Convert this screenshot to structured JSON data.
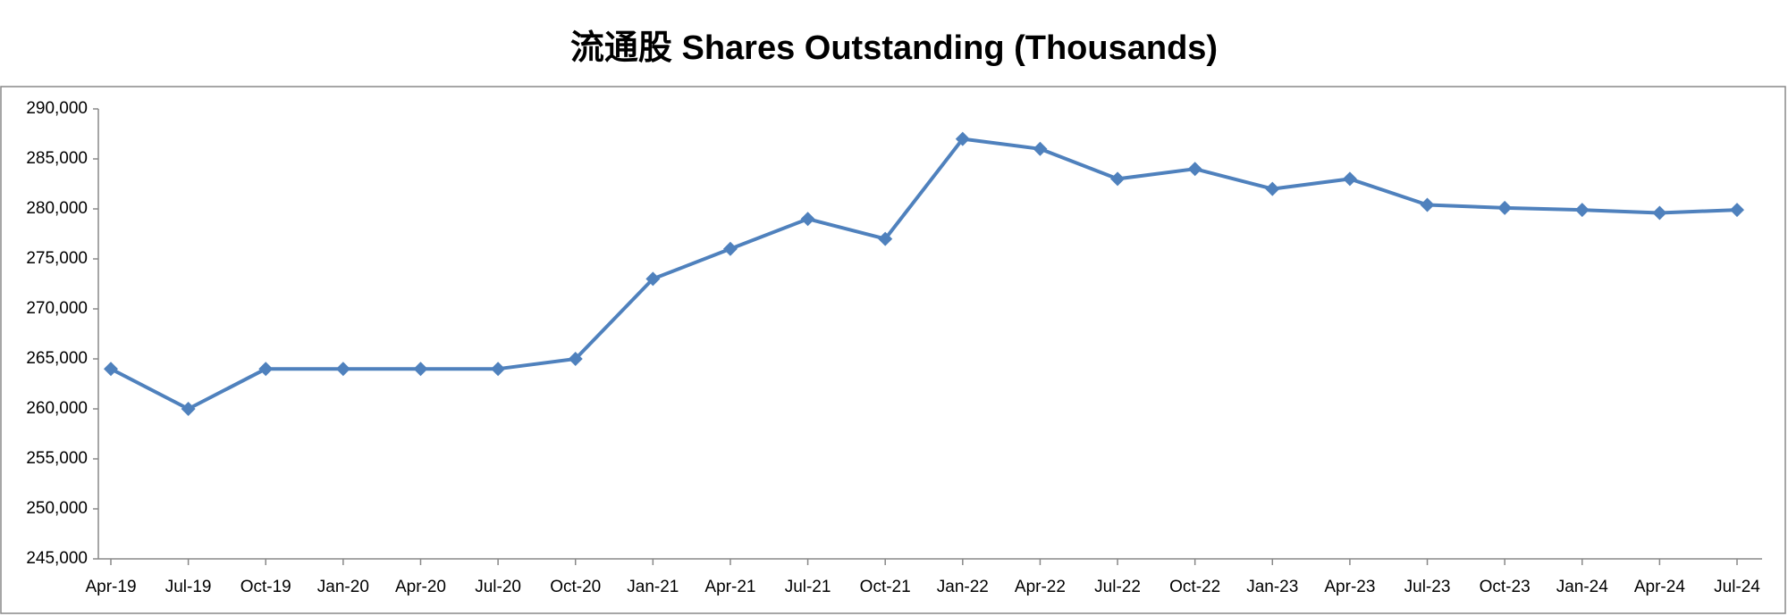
{
  "chart_data": {
    "type": "line",
    "title": "流通股 Shares Outstanding (Thousands)",
    "categories": [
      "Apr-19",
      "Jul-19",
      "Oct-19",
      "Jan-20",
      "Apr-20",
      "Jul-20",
      "Oct-20",
      "Jan-21",
      "Apr-21",
      "Jul-21",
      "Oct-21",
      "Jan-22",
      "Apr-22",
      "Jul-22",
      "Oct-22",
      "Jan-23",
      "Apr-23",
      "Jul-23",
      "Oct-23",
      "Jan-24",
      "Apr-24",
      "Jul-24"
    ],
    "values": [
      264000,
      260000,
      264000,
      264000,
      264000,
      264000,
      265000,
      273000,
      276000,
      279000,
      277000,
      287000,
      286000,
      283000,
      284000,
      282000,
      283000,
      280400,
      280100,
      279900,
      279600,
      279900
    ],
    "color": "#4f81bd",
    "ylim": [
      245000,
      290000
    ],
    "yticks": [
      {
        "value": 245000,
        "label": "245,000"
      },
      {
        "value": 250000,
        "label": "250,000"
      },
      {
        "value": 255000,
        "label": "255,000"
      },
      {
        "value": 260000,
        "label": "260,000"
      },
      {
        "value": 265000,
        "label": "265,000"
      },
      {
        "value": 270000,
        "label": "270,000"
      },
      {
        "value": 275000,
        "label": "275,000"
      },
      {
        "value": 280000,
        "label": "280,000"
      },
      {
        "value": 285000,
        "label": "285,000"
      },
      {
        "value": 290000,
        "label": "290,000"
      }
    ],
    "grid": false
  }
}
